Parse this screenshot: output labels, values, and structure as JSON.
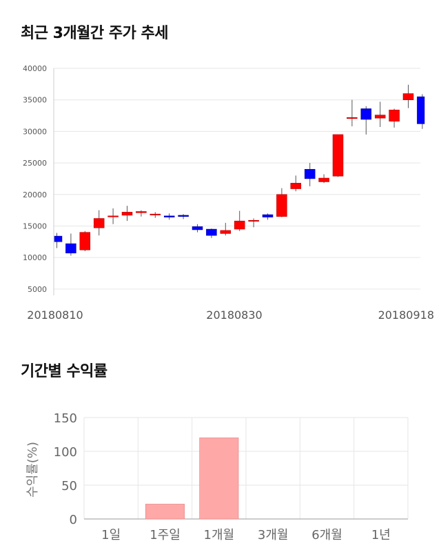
{
  "sections": {
    "price_title": "최근 3개월간 주가 추세",
    "return_title": "기간별 수익률"
  },
  "chart_data": [
    {
      "type": "candlestick",
      "yticks": [
        40000,
        35000,
        30000,
        25000,
        20000,
        15000,
        10000,
        5000
      ],
      "ylim": [
        4000,
        40000
      ],
      "xtick_labels": [
        "20180810",
        "20180830",
        "20180918"
      ],
      "grid": true,
      "colors": {
        "up": "#ff0000",
        "down": "#0000ff",
        "wick": "#555555"
      },
      "candles": [
        {
          "open": 13400,
          "close": 12500,
          "high": 13900,
          "low": 11500
        },
        {
          "open": 12200,
          "close": 10700,
          "high": 13800,
          "low": 10300
        },
        {
          "open": 11200,
          "close": 14000,
          "high": 14200,
          "low": 11000
        },
        {
          "open": 14700,
          "close": 16200,
          "high": 17500,
          "low": 13500
        },
        {
          "open": 16500,
          "close": 16600,
          "high": 17800,
          "low": 15300
        },
        {
          "open": 16700,
          "close": 17200,
          "high": 18200,
          "low": 15800
        },
        {
          "open": 17100,
          "close": 17300,
          "high": 17500,
          "low": 16500
        },
        {
          "open": 16800,
          "close": 16900,
          "high": 17200,
          "low": 16300
        },
        {
          "open": 16600,
          "close": 16400,
          "high": 17000,
          "low": 16000
        },
        {
          "open": 16700,
          "close": 16500,
          "high": 16900,
          "low": 16100
        },
        {
          "open": 14900,
          "close": 14400,
          "high": 15300,
          "low": 14000
        },
        {
          "open": 14500,
          "close": 13500,
          "high": 14600,
          "low": 13100
        },
        {
          "open": 13800,
          "close": 14300,
          "high": 15500,
          "low": 13500
        },
        {
          "open": 14500,
          "close": 15800,
          "high": 17400,
          "low": 14200
        },
        {
          "open": 15900,
          "close": 15900,
          "high": 16200,
          "low": 14800
        },
        {
          "open": 16800,
          "close": 16400,
          "high": 17000,
          "low": 16000
        },
        {
          "open": 16500,
          "close": 20000,
          "high": 21000,
          "low": 16400
        },
        {
          "open": 20900,
          "close": 21800,
          "high": 23000,
          "low": 20500
        },
        {
          "open": 24000,
          "close": 22500,
          "high": 25000,
          "low": 21300
        },
        {
          "open": 22000,
          "close": 22600,
          "high": 23200,
          "low": 21800
        },
        {
          "open": 22900,
          "close": 29500,
          "high": 29500,
          "low": 22800
        },
        {
          "open": 32200,
          "close": 32200,
          "high": 35000,
          "low": 30800
        },
        {
          "open": 33600,
          "close": 31900,
          "high": 34000,
          "low": 29500
        },
        {
          "open": 32100,
          "close": 32600,
          "high": 34700,
          "low": 30700
        },
        {
          "open": 31600,
          "close": 33400,
          "high": 33600,
          "low": 30600
        },
        {
          "open": 35000,
          "close": 36000,
          "high": 37400,
          "low": 33700
        },
        {
          "open": 35500,
          "close": 31200,
          "high": 35900,
          "low": 30400
        }
      ]
    },
    {
      "type": "bar",
      "categories": [
        "1일",
        "1주일",
        "1개월",
        "3개월",
        "6개월",
        "1년"
      ],
      "values": [
        0,
        22,
        120,
        0,
        0,
        0
      ],
      "ylabel": "수익률(%)",
      "yticks": [
        0,
        50,
        100,
        150
      ],
      "ylim": [
        0,
        150
      ],
      "grid": true,
      "colors": {
        "bar": "#ffa8a8",
        "bar_edge": "#e08080"
      }
    }
  ]
}
